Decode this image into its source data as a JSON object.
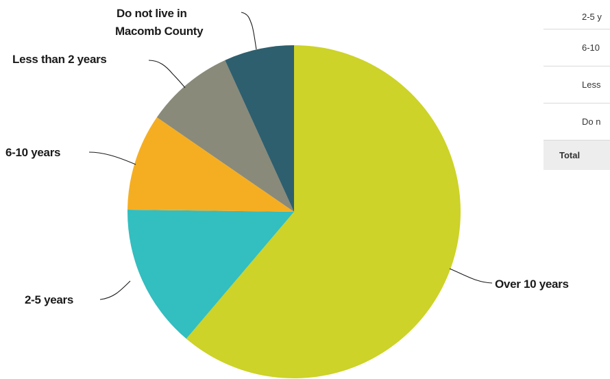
{
  "chart_data": {
    "type": "pie",
    "title": "",
    "slices": [
      {
        "label": "Over 10 years",
        "value": 61.2,
        "color": "#CDD328"
      },
      {
        "label": "2-5 years",
        "value": 14.0,
        "color": "#33BEC0"
      },
      {
        "label": "6-10 years",
        "value": 9.4,
        "color": "#F5AE22"
      },
      {
        "label": "Less than 2 years",
        "value": 8.6,
        "color": "#898A7A"
      },
      {
        "label": "Do not live in Macomb County",
        "value": 6.8,
        "color": "#2E5F6E"
      }
    ],
    "start": "12 o'clock",
    "direction": "clockwise",
    "legend": "none"
  },
  "labels": {
    "over_10": "Over 10 years",
    "two_five": "2-5 years",
    "six_ten": "6-10 years",
    "less_two": "Less than 2 years",
    "do_not_live_1": "Do not live in",
    "do_not_live_2": "Macomb County"
  },
  "table": {
    "rows": [
      "2-5 y",
      "6-10",
      "Less",
      "Do n"
    ],
    "total_label": "Total"
  }
}
